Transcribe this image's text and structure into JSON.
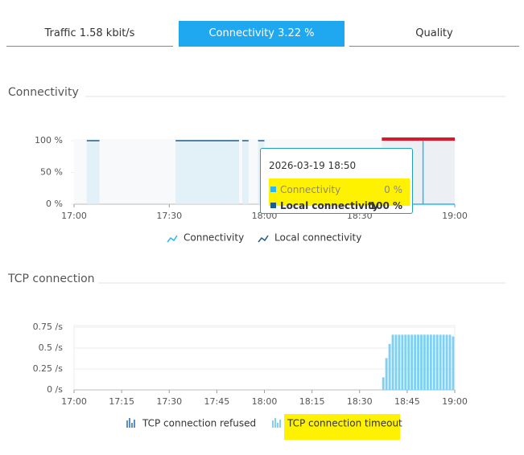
{
  "tabs": [
    "Traffic 1.58 kbit/s",
    "Connectivity 3.22 %",
    "Quality"
  ],
  "chart_data": [
    {
      "type": "area",
      "title": "Connectivity",
      "xlim": [
        "17:00",
        "19:00"
      ],
      "xticks": [
        "17:00",
        "17:30",
        "18:00",
        "18:30",
        "19:00"
      ],
      "ylim": [
        0,
        100
      ],
      "yticks": [
        {
          "value": 0,
          "label": "0 %"
        },
        {
          "value": 50,
          "label": "50 %"
        },
        {
          "value": 100,
          "label": "100 %"
        }
      ],
      "grid": false,
      "series": [
        {
          "name": "Connectivity",
          "color": "#2ab6f4",
          "x": [
            "18:37",
            "19:00"
          ],
          "values": [
            0,
            0
          ]
        },
        {
          "name": "Local connectivity",
          "color": "#1f5c8a",
          "x": [
            "17:04",
            "17:08",
            "17:08",
            "17:32",
            "17:52",
            "17:52",
            "17:53",
            "17:55",
            "17:55",
            "17:58",
            "18:00"
          ],
          "values": [
            100,
            100,
            null,
            100,
            100,
            null,
            100,
            100,
            null,
            100,
            100
          ]
        }
      ],
      "tooltip": {
        "title": "2026-03-19 18:50",
        "rows": [
          {
            "label": "Connectivity",
            "value": "0 %"
          },
          {
            "label": "Local connectivity",
            "value": "100 %"
          }
        ]
      }
    },
    {
      "type": "bar",
      "title": "TCP connection",
      "xlim": [
        "17:00",
        "19:00"
      ],
      "xticks": [
        "17:00",
        "17:15",
        "17:30",
        "17:45",
        "18:00",
        "18:15",
        "18:30",
        "18:45",
        "19:00"
      ],
      "ylim": [
        0,
        0.75
      ],
      "yticks": [
        {
          "value": 0,
          "label": "0 /s"
        },
        {
          "value": 0.25,
          "label": "0.25 /s"
        },
        {
          "value": 0.5,
          "label": "0.5 /s"
        },
        {
          "value": 0.75,
          "label": "0.75 /s"
        }
      ],
      "grid": true,
      "x": [
        "18:37",
        "18:38",
        "18:39",
        "18:40",
        "18:41",
        "18:42",
        "18:43",
        "18:44",
        "18:45",
        "18:46",
        "18:47",
        "18:48",
        "18:49",
        "18:50",
        "18:51",
        "18:52",
        "18:53",
        "18:54",
        "18:55",
        "18:56",
        "18:57",
        "18:58",
        "18:59"
      ],
      "series": [
        {
          "name": "TCP connection refused",
          "color": "#5a8fbf",
          "values": [
            0,
            0,
            0,
            0,
            0,
            0,
            0,
            0,
            0,
            0,
            0,
            0,
            0,
            0,
            0,
            0,
            0,
            0,
            0,
            0,
            0,
            0,
            0
          ]
        },
        {
          "name": "TCP connection timeout",
          "color": "#7fd0f2",
          "values": [
            0.15,
            0.38,
            0.55,
            0.66,
            0.66,
            0.66,
            0.66,
            0.66,
            0.66,
            0.66,
            0.66,
            0.66,
            0.66,
            0.66,
            0.66,
            0.66,
            0.66,
            0.66,
            0.66,
            0.66,
            0.66,
            0.66,
            0.64
          ]
        }
      ]
    }
  ]
}
